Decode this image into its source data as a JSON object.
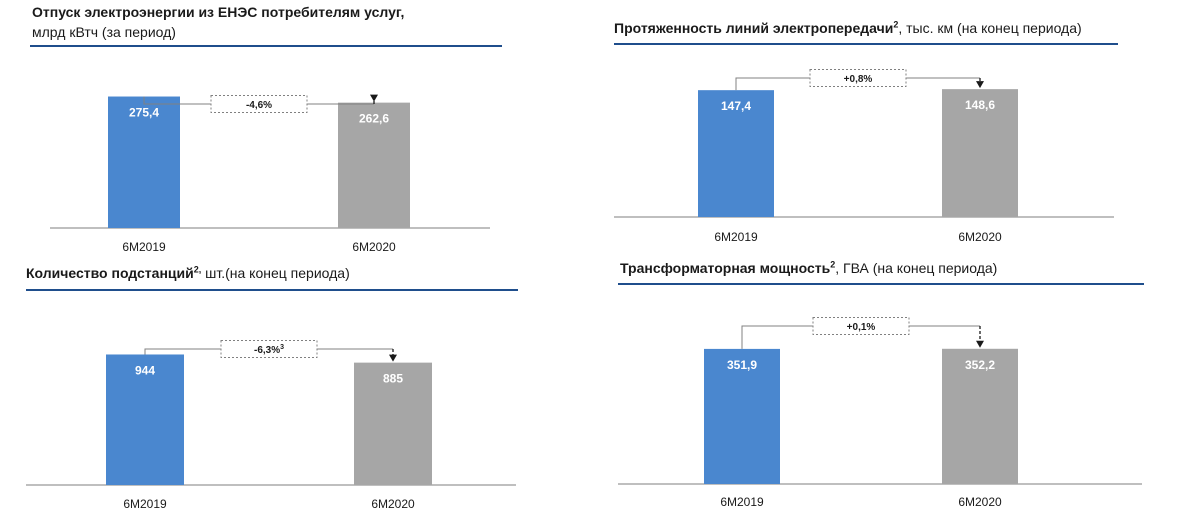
{
  "colors": {
    "bar_2019": "#4a87cf",
    "bar_2020": "#a6a6a6",
    "rule": "#1f4e8c",
    "axis": "#7f7f7f"
  },
  "chart_data": [
    {
      "type": "bar",
      "title_bold": "Отпуск электроэнергии из ЕНЭС потребителям услуг,",
      "title_sup": "",
      "title_unit": "млрд кВтч (за период)",
      "categories": [
        "6M2019",
        "6M2020"
      ],
      "values": [
        275.4,
        262.6
      ],
      "value_labels": [
        "275,4",
        "262,6"
      ],
      "change_label": "-4,6%",
      "change_sup": "",
      "ylim": [
        0,
        310
      ]
    },
    {
      "type": "bar",
      "title_bold": "Протяженность линий электропередачи",
      "title_sup": "2",
      "title_unit": ", тыс. км (на конец периода)",
      "categories": [
        "6M2019",
        "6M2020"
      ],
      "values": [
        147.4,
        148.6
      ],
      "value_labels": [
        "147,4",
        "148,6"
      ],
      "change_label": "+0,8%",
      "change_sup": "",
      "ylim": [
        0,
        172
      ]
    },
    {
      "type": "bar",
      "title_bold": "Количество подстанций",
      "title_sup": "2,",
      "title_unit": " шт.(на конец периода)",
      "categories": [
        "6M2019",
        "6M2020"
      ],
      "values": [
        944,
        885
      ],
      "value_labels": [
        "944",
        "885"
      ],
      "change_label": "-6,3%",
      "change_sup": "3",
      "ylim": [
        0,
        1150
      ]
    },
    {
      "type": "bar",
      "title_bold": "Трансформаторная мощность",
      "title_sup": "2",
      "title_unit": ", ГВА (на конец периода)",
      "categories": [
        "6M2019",
        "6M2020"
      ],
      "values": [
        351.9,
        352.2
      ],
      "value_labels": [
        "351,9",
        "352,2"
      ],
      "change_label": "+0,1%",
      "change_sup": "",
      "ylim": [
        0,
        435
      ]
    }
  ]
}
